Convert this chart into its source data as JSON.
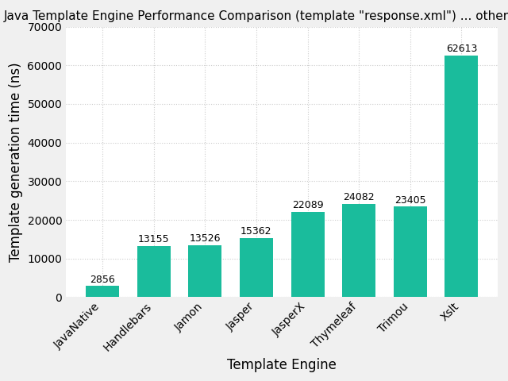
{
  "title": "Java Template Engine Performance Comparison (template \"response.xml\") ... other engines",
  "xlabel": "Template Engine",
  "ylabel": "Template generation time (ns)",
  "categories": [
    "JavaNative",
    "Handlebars",
    "Jamon",
    "Jasper",
    "JasperX",
    "Thymeleaf",
    "Trimou",
    "Xslt"
  ],
  "values": [
    2856,
    13155,
    13526,
    15362,
    22089,
    24082,
    23405,
    62613
  ],
  "bar_color": "#1ABC9C",
  "ylim": [
    0,
    70000
  ],
  "yticks": [
    0,
    10000,
    20000,
    30000,
    40000,
    50000,
    60000,
    70000
  ],
  "title_fontsize": 11,
  "axis_label_fontsize": 12,
  "tick_fontsize": 10,
  "annotation_fontsize": 9,
  "background_color": "#f0f0f0",
  "plot_bg_color": "#ffffff",
  "grid_color": "#cccccc"
}
